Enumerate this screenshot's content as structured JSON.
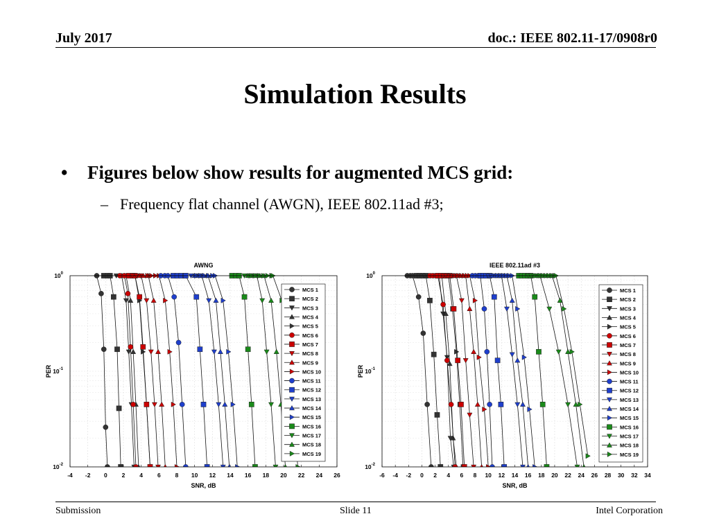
{
  "header": {
    "date": "July 2017",
    "doc": "doc.: IEEE 802.11-17/0908r0"
  },
  "slide": {
    "title": "Simulation Results",
    "bullet": "Figures below show results for augmented MCS grid:",
    "subbullet": "Frequency flat channel (AWGN), IEEE 802.11ad #3;"
  },
  "footer": {
    "left": "Submission",
    "center": "Slide 11",
    "right": "Intel Corporation"
  },
  "chart_data": [
    {
      "type": "line",
      "title": "AWNG",
      "xlabel": "SNR, dB",
      "ylabel": "PER",
      "xlim": [
        -4,
        26
      ],
      "xticks": [
        "-4",
        "-2",
        "0",
        "2",
        "4",
        "6",
        "8",
        "10",
        "12",
        "14",
        "16",
        "18",
        "20",
        "22",
        "24",
        "26"
      ],
      "ylim": [
        0.01,
        1
      ],
      "yscale": "log",
      "legend": "right",
      "grid": true,
      "series": [
        {
          "name": "MCS 1",
          "color": "#333333",
          "marker": "circle",
          "start": -1.0,
          "x": [
            -1.0,
            -0.5,
            -0.2,
            0.0,
            0.2
          ],
          "values": [
            1.0,
            0.65,
            0.17,
            0.026,
            0.01
          ]
        },
        {
          "name": "MCS 2",
          "color": "#333333",
          "marker": "square",
          "start": -0.2,
          "x": [
            0.5,
            0.9,
            1.3,
            1.5,
            1.7
          ],
          "values": [
            1.0,
            0.6,
            0.17,
            0.041,
            0.01
          ]
        },
        {
          "name": "MCS 3",
          "color": "#333333",
          "marker": "tri_down",
          "start": 1.2,
          "x": [
            1.8,
            2.3,
            2.6,
            2.9,
            3.2
          ],
          "values": [
            1.0,
            0.55,
            0.16,
            0.045,
            0.01
          ]
        },
        {
          "name": "MCS 4",
          "color": "#333333",
          "marker": "tri_up",
          "start": 1.8,
          "x": [
            2.3,
            2.8,
            3.1,
            3.4,
            3.7
          ],
          "values": [
            1.0,
            0.55,
            0.16,
            0.045,
            0.01
          ]
        },
        {
          "name": "MCS 5",
          "color": "#333333",
          "marker": "tri_right",
          "start": 2.3,
          "x": [
            3.3,
            3.8,
            4.2,
            4.6,
            5.0
          ],
          "values": [
            1.0,
            0.55,
            0.16,
            0.045,
            0.01
          ]
        },
        {
          "name": "MCS 6",
          "color": "#cc0000",
          "marker": "circle",
          "start": 1.6,
          "x": [
            2.1,
            2.5,
            2.8,
            3.1,
            3.4
          ],
          "values": [
            1.0,
            0.65,
            0.18,
            0.045,
            0.01
          ]
        },
        {
          "name": "MCS 7",
          "color": "#cc0000",
          "marker": "square",
          "start": 2.6,
          "x": [
            3.3,
            3.8,
            4.2,
            4.6,
            5.0
          ],
          "values": [
            1.0,
            0.6,
            0.18,
            0.045,
            0.01
          ]
        },
        {
          "name": "MCS 8",
          "color": "#cc0000",
          "marker": "tri_down",
          "start": 3.0,
          "x": [
            4.0,
            4.6,
            5.1,
            5.5,
            5.9
          ],
          "values": [
            1.0,
            0.55,
            0.16,
            0.045,
            0.01
          ]
        },
        {
          "name": "MCS 9",
          "color": "#cc0000",
          "marker": "tri_up",
          "start": 3.8,
          "x": [
            4.8,
            5.4,
            5.9,
            6.3,
            6.7
          ],
          "values": [
            1.0,
            0.55,
            0.16,
            0.045,
            0.01
          ]
        },
        {
          "name": "MCS 10",
          "color": "#cc0000",
          "marker": "tri_right",
          "start": 4.7,
          "x": [
            6.0,
            6.7,
            7.2,
            7.6,
            8.0
          ],
          "values": [
            1.0,
            0.55,
            0.16,
            0.045,
            0.01
          ]
        },
        {
          "name": "MCS 11",
          "color": "#1f3fcc",
          "marker": "circle",
          "start": 6.2,
          "x": [
            7.0,
            7.7,
            8.2,
            8.6,
            9.0
          ],
          "values": [
            1.0,
            0.6,
            0.2,
            0.045,
            0.01
          ]
        },
        {
          "name": "MCS 12",
          "color": "#1f3fcc",
          "marker": "square",
          "start": 7.6,
          "x": [
            9.0,
            10.2,
            10.6,
            11.0,
            11.4
          ],
          "values": [
            1.0,
            0.6,
            0.17,
            0.045,
            0.01
          ]
        },
        {
          "name": "MCS 13",
          "color": "#1f3fcc",
          "marker": "tri_down",
          "start": 9.6,
          "x": [
            10.8,
            11.6,
            12.2,
            12.7,
            13.2
          ],
          "values": [
            1.0,
            0.55,
            0.16,
            0.045,
            0.01
          ]
        },
        {
          "name": "MCS 14",
          "color": "#1f3fcc",
          "marker": "tri_up",
          "start": 10.0,
          "x": [
            11.5,
            12.4,
            12.9,
            13.4,
            13.9
          ],
          "values": [
            1.0,
            0.55,
            0.16,
            0.045,
            0.01
          ]
        },
        {
          "name": "MCS 15",
          "color": "#1f3fcc",
          "marker": "tri_right",
          "start": 10.2,
          "x": [
            12.3,
            13.2,
            13.8,
            14.3,
            14.8
          ],
          "values": [
            1.0,
            0.55,
            0.16,
            0.045,
            0.01
          ]
        },
        {
          "name": "MCS 16",
          "color": "#1a8a1a",
          "marker": "square",
          "start": 14.2,
          "x": [
            15.0,
            15.6,
            16.0,
            16.4,
            16.8
          ],
          "values": [
            1.0,
            0.6,
            0.17,
            0.045,
            0.01
          ]
        },
        {
          "name": "MCS 17",
          "color": "#1a8a1a",
          "marker": "tri_down",
          "start": 15.6,
          "x": [
            17.0,
            17.6,
            18.1,
            18.6,
            19.1
          ],
          "values": [
            1.0,
            0.55,
            0.16,
            0.045,
            0.01
          ]
        },
        {
          "name": "MCS 18",
          "color": "#1a8a1a",
          "marker": "tri_up",
          "start": 16.0,
          "x": [
            17.8,
            18.6,
            19.2,
            19.7,
            20.2
          ],
          "values": [
            1.0,
            0.55,
            0.16,
            0.045,
            0.01
          ]
        },
        {
          "name": "MCS 19",
          "color": "#1a8a1a",
          "marker": "tri_right",
          "start": 16.4,
          "x": [
            18.8,
            19.8,
            20.4,
            21.0,
            21.6
          ],
          "values": [
            1.0,
            0.55,
            0.16,
            0.045,
            0.01
          ]
        }
      ]
    },
    {
      "type": "line",
      "title": "IEEE 802.11ad #3",
      "xlabel": "SNR, dB",
      "ylabel": "PER",
      "xlim": [
        -6,
        34
      ],
      "xticks": [
        "-6",
        "-4",
        "-2",
        "0",
        "2",
        "4",
        "6",
        "8",
        "10",
        "12",
        "14",
        "16",
        "18",
        "20",
        "22",
        "24",
        "26",
        "28",
        "30",
        "32",
        "34"
      ],
      "ylim": [
        0.01,
        1
      ],
      "yscale": "log",
      "legend": "right",
      "grid": true,
      "series": [
        {
          "name": "MCS 1",
          "color": "#333333",
          "marker": "circle",
          "start": -2.2,
          "x": [
            -1.4,
            -0.5,
            0.2,
            0.8,
            1.4
          ],
          "values": [
            1.0,
            0.6,
            0.25,
            0.045,
            0.01
          ]
        },
        {
          "name": "MCS 2",
          "color": "#333333",
          "marker": "square",
          "start": -0.8,
          "x": [
            0.6,
            1.2,
            1.8,
            2.3,
            2.8
          ],
          "values": [
            1.0,
            0.55,
            0.15,
            0.035,
            0.01
          ]
        },
        {
          "name": "MCS 3",
          "color": "#333333",
          "marker": "tri_down",
          "start": 0.4,
          "x": [
            2.6,
            3.2,
            3.8,
            4.3,
            4.8
          ],
          "values": [
            1.0,
            0.4,
            0.14,
            0.02,
            0.01
          ]
        },
        {
          "name": "MCS 4",
          "color": "#333333",
          "marker": "tri_up",
          "start": 1.0,
          "x": [
            3.0,
            3.6,
            4.2,
            4.7,
            5.2
          ],
          "values": [
            1.0,
            0.4,
            0.12,
            0.02,
            0.01
          ]
        },
        {
          "name": "MCS 5",
          "color": "#333333",
          "marker": "tri_right",
          "start": 1.6,
          "x": [
            4.0,
            4.6,
            5.2,
            5.7,
            6.2
          ],
          "values": [
            1.0,
            0.45,
            0.16,
            0.045,
            0.01
          ]
        },
        {
          "name": "MCS 6",
          "color": "#cc0000",
          "marker": "circle",
          "start": 1.2,
          "x": [
            2.4,
            3.2,
            3.8,
            4.4,
            5.0
          ],
          "values": [
            1.0,
            0.5,
            0.13,
            0.045,
            0.01
          ]
        },
        {
          "name": "MCS 7",
          "color": "#cc0000",
          "marker": "square",
          "start": 2.4,
          "x": [
            4.2,
            4.8,
            5.4,
            5.9,
            6.4
          ],
          "values": [
            1.0,
            0.45,
            0.13,
            0.045,
            0.01
          ]
        },
        {
          "name": "MCS 8",
          "color": "#cc0000",
          "marker": "tri_down",
          "start": 3.2,
          "x": [
            5.2,
            6.0,
            6.6,
            7.2,
            7.8
          ],
          "values": [
            1.0,
            0.55,
            0.13,
            0.035,
            0.01
          ]
        },
        {
          "name": "MCS 9",
          "color": "#cc0000",
          "marker": "tri_up",
          "start": 4.0,
          "x": [
            6.6,
            7.2,
            7.8,
            8.4,
            9.0
          ],
          "values": [
            1.0,
            0.45,
            0.16,
            0.045,
            0.01
          ]
        },
        {
          "name": "MCS 10",
          "color": "#cc0000",
          "marker": "tri_right",
          "start": 5.0,
          "x": [
            7.2,
            8.0,
            8.6,
            9.4,
            10.0
          ],
          "values": [
            1.0,
            0.55,
            0.14,
            0.04,
            0.01
          ]
        },
        {
          "name": "MCS 11",
          "color": "#1f3fcc",
          "marker": "circle",
          "start": 7.6,
          "x": [
            8.8,
            9.4,
            9.8,
            10.2,
            10.6
          ],
          "values": [
            1.0,
            0.45,
            0.16,
            0.045,
            0.01
          ]
        },
        {
          "name": "MCS 12",
          "color": "#1f3fcc",
          "marker": "square",
          "start": 8.8,
          "x": [
            10.2,
            10.9,
            11.4,
            11.9,
            12.4
          ],
          "values": [
            1.0,
            0.6,
            0.13,
            0.045,
            0.01
          ]
        },
        {
          "name": "MCS 13",
          "color": "#1f3fcc",
          "marker": "tri_down",
          "start": 10.0,
          "x": [
            12.0,
            12.8,
            13.6,
            14.4,
            15.2
          ],
          "values": [
            1.0,
            0.45,
            0.15,
            0.045,
            0.01
          ]
        },
        {
          "name": "MCS 14",
          "color": "#1f3fcc",
          "marker": "tri_up",
          "start": 10.6,
          "x": [
            12.8,
            13.6,
            14.4,
            15.2,
            16.0
          ],
          "values": [
            1.0,
            0.55,
            0.13,
            0.045,
            0.01
          ]
        },
        {
          "name": "MCS 15",
          "color": "#1f3fcc",
          "marker": "tri_right",
          "start": 11.4,
          "x": [
            13.6,
            14.4,
            15.4,
            16.2,
            17.0
          ],
          "values": [
            1.0,
            0.45,
            0.14,
            0.04,
            0.01
          ]
        },
        {
          "name": "MCS 16",
          "color": "#1a8a1a",
          "marker": "square",
          "start": 14.6,
          "x": [
            16.4,
            17.0,
            17.6,
            18.2,
            18.8
          ],
          "values": [
            1.0,
            0.6,
            0.16,
            0.045,
            0.01
          ]
        },
        {
          "name": "MCS 17",
          "color": "#1a8a1a",
          "marker": "tri_down",
          "start": 16.0,
          "x": [
            17.8,
            19.2,
            20.6,
            22.0,
            23.4
          ],
          "values": [
            1.0,
            0.45,
            0.16,
            0.045,
            0.01
          ]
        },
        {
          "name": "MCS 18",
          "color": "#1a8a1a",
          "marker": "tri_up",
          "start": 17.0,
          "x": [
            19.6,
            20.8,
            22.0,
            23.2,
            24.4
          ],
          "values": [
            1.0,
            0.55,
            0.16,
            0.045,
            0.01
          ]
        },
        {
          "name": "MCS 19",
          "color": "#1a8a1a",
          "marker": "tri_right",
          "start": 17.8,
          "x": [
            20.2,
            21.4,
            22.6,
            23.8,
            25.0
          ],
          "values": [
            1.0,
            0.45,
            0.16,
            0.045,
            0.013
          ]
        }
      ]
    }
  ]
}
